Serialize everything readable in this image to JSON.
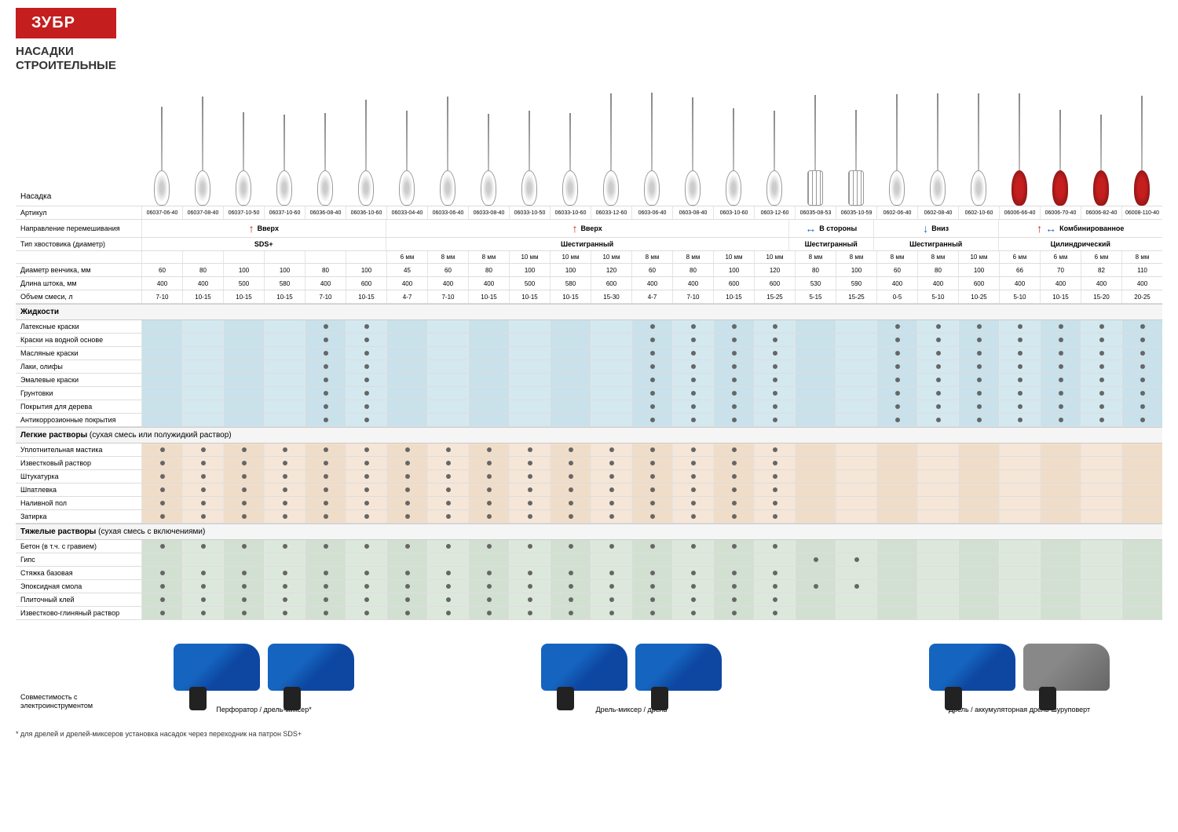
{
  "brand": "ЗУБР",
  "title1": "НАСАДКИ",
  "title2": "СТРОИТЕЛЬНЫЕ",
  "nasadka": "Насадка",
  "articles": [
    "06037-06-40",
    "06037-08-40",
    "06037-10-50",
    "06037-10-60",
    "06036-08-40",
    "06036-10-60",
    "06033-04-40",
    "06033-06-40",
    "06033-08-40",
    "06033-10-50",
    "06033-10-60",
    "06033-12-60",
    "0603-06-40",
    "0603-08-40",
    "0603-10-60",
    "0603-12-60",
    "06035-08-53",
    "06035-10-59",
    "0602-06-40",
    "0602-08-40",
    "0602-10-60",
    "06006-66-40",
    "06006-70-40",
    "06006-82-40",
    "06008-110-40"
  ],
  "rowLabels": {
    "art": "Артикул",
    "dir": "Направление перемешивания",
    "shank": "Тип хвостовика (диаметр)",
    "diam": "Диаметр венчика, мм",
    "len": "Длина штока, мм",
    "vol": "Объем смеси, л"
  },
  "dirs": {
    "up": "Вверх",
    "sides": "В стороны",
    "down": "Вниз",
    "combo": "Комбинированное"
  },
  "shank": {
    "sds": "SDS+",
    "hex": "Шестигранный",
    "cyl": "Цилиндрический"
  },
  "shankSizes": [
    "",
    "",
    "",
    "",
    "",
    "",
    "6 мм",
    "8 мм",
    "8 мм",
    "10 мм",
    "10 мм",
    "10 мм",
    "8 мм",
    "8 мм",
    "10 мм",
    "10 мм",
    "8 мм",
    "8 мм",
    "8 мм",
    "8 мм",
    "10 мм",
    "6 мм",
    "6 мм",
    "6 мм",
    "8 мм"
  ],
  "diams": [
    "60",
    "80",
    "100",
    "100",
    "80",
    "100",
    "45",
    "60",
    "80",
    "100",
    "100",
    "120",
    "60",
    "80",
    "100",
    "120",
    "80",
    "100",
    "60",
    "80",
    "100",
    "66",
    "70",
    "82",
    "110"
  ],
  "lens": [
    "400",
    "400",
    "500",
    "580",
    "400",
    "600",
    "400",
    "400",
    "400",
    "500",
    "580",
    "600",
    "400",
    "400",
    "600",
    "600",
    "530",
    "590",
    "400",
    "400",
    "600",
    "400",
    "400",
    "400",
    "400"
  ],
  "vols": [
    "7-10",
    "10-15",
    "10-15",
    "10-15",
    "7-10",
    "10-15",
    "4-7",
    "7-10",
    "10-15",
    "10-15",
    "10-15",
    "15-30",
    "4-7",
    "7-10",
    "10-15",
    "15-25",
    "5-15",
    "15-25",
    "0-5",
    "5-10",
    "10-25",
    "5-10",
    "10-15",
    "15-20",
    "20-25"
  ],
  "secLiquids": "Жидкости",
  "liquidRows": [
    "Латексные краски",
    "Краски на водной основе",
    "Масляные краски",
    "Лаки, олифы",
    "Эмалевые краски",
    "Грунтовки",
    "Покрытия для дерева",
    "Антикоррозионные покрытия"
  ],
  "liquidDots": [
    [
      0,
      0,
      0,
      0,
      1,
      1,
      0,
      0,
      0,
      0,
      0,
      0,
      1,
      1,
      1,
      1,
      0,
      0,
      1,
      1,
      1,
      1,
      1,
      1,
      1
    ],
    [
      0,
      0,
      0,
      0,
      1,
      1,
      0,
      0,
      0,
      0,
      0,
      0,
      1,
      1,
      1,
      1,
      0,
      0,
      1,
      1,
      1,
      1,
      1,
      1,
      1
    ],
    [
      0,
      0,
      0,
      0,
      1,
      1,
      0,
      0,
      0,
      0,
      0,
      0,
      1,
      1,
      1,
      1,
      0,
      0,
      1,
      1,
      1,
      1,
      1,
      1,
      1
    ],
    [
      0,
      0,
      0,
      0,
      1,
      1,
      0,
      0,
      0,
      0,
      0,
      0,
      1,
      1,
      1,
      1,
      0,
      0,
      1,
      1,
      1,
      1,
      1,
      1,
      1
    ],
    [
      0,
      0,
      0,
      0,
      1,
      1,
      0,
      0,
      0,
      0,
      0,
      0,
      1,
      1,
      1,
      1,
      0,
      0,
      1,
      1,
      1,
      1,
      1,
      1,
      1
    ],
    [
      0,
      0,
      0,
      0,
      1,
      1,
      0,
      0,
      0,
      0,
      0,
      0,
      1,
      1,
      1,
      1,
      0,
      0,
      1,
      1,
      1,
      1,
      1,
      1,
      1
    ],
    [
      0,
      0,
      0,
      0,
      1,
      1,
      0,
      0,
      0,
      0,
      0,
      0,
      1,
      1,
      1,
      1,
      0,
      0,
      1,
      1,
      1,
      1,
      1,
      1,
      1
    ],
    [
      0,
      0,
      0,
      0,
      1,
      1,
      0,
      0,
      0,
      0,
      0,
      0,
      1,
      1,
      1,
      1,
      0,
      0,
      1,
      1,
      1,
      1,
      1,
      1,
      1
    ]
  ],
  "secLights": "Легкие растворы",
  "secLightsSub": " (сухая смесь или полужидкий раствор)",
  "lightRows": [
    "Уплотнительная мастика",
    "Известковый раствор",
    "Штукатурка",
    "Шпатлевка",
    "Наливной пол",
    "Затирка"
  ],
  "lightDots": [
    [
      1,
      1,
      1,
      1,
      1,
      1,
      1,
      1,
      1,
      1,
      1,
      1,
      1,
      1,
      1,
      1,
      0,
      0,
      0,
      0,
      0,
      0,
      0,
      0,
      0
    ],
    [
      1,
      1,
      1,
      1,
      1,
      1,
      1,
      1,
      1,
      1,
      1,
      1,
      1,
      1,
      1,
      1,
      0,
      0,
      0,
      0,
      0,
      0,
      0,
      0,
      0
    ],
    [
      1,
      1,
      1,
      1,
      1,
      1,
      1,
      1,
      1,
      1,
      1,
      1,
      1,
      1,
      1,
      1,
      0,
      0,
      0,
      0,
      0,
      0,
      0,
      0,
      0
    ],
    [
      1,
      1,
      1,
      1,
      1,
      1,
      1,
      1,
      1,
      1,
      1,
      1,
      1,
      1,
      1,
      1,
      0,
      0,
      0,
      0,
      0,
      0,
      0,
      0,
      0
    ],
    [
      1,
      1,
      1,
      1,
      1,
      1,
      1,
      1,
      1,
      1,
      1,
      1,
      1,
      1,
      1,
      1,
      0,
      0,
      0,
      0,
      0,
      0,
      0,
      0,
      0
    ],
    [
      1,
      1,
      1,
      1,
      1,
      1,
      1,
      1,
      1,
      1,
      1,
      1,
      1,
      1,
      1,
      1,
      0,
      0,
      0,
      0,
      0,
      0,
      0,
      0,
      0
    ]
  ],
  "secHeavy": "Тяжелые растворы",
  "secHeavySub": " (сухая смесь с включениями)",
  "heavyRows": [
    "Бетон (в т.ч. с гравием)",
    "Гипс",
    "Стяжка базовая",
    "Эпоксидная смола",
    "Плиточный клей",
    "Известково-глиняный раствор"
  ],
  "heavyDots": [
    [
      1,
      1,
      1,
      1,
      1,
      1,
      1,
      1,
      1,
      1,
      1,
      1,
      1,
      1,
      1,
      1,
      0,
      0,
      0,
      0,
      0,
      0,
      0,
      0,
      0
    ],
    [
      0,
      0,
      0,
      0,
      0,
      0,
      0,
      0,
      0,
      0,
      0,
      0,
      0,
      0,
      0,
      0,
      1,
      1,
      0,
      0,
      0,
      0,
      0,
      0,
      0
    ],
    [
      1,
      1,
      1,
      1,
      1,
      1,
      1,
      1,
      1,
      1,
      1,
      1,
      1,
      1,
      1,
      1,
      0,
      0,
      0,
      0,
      0,
      0,
      0,
      0,
      0
    ],
    [
      1,
      1,
      1,
      1,
      1,
      1,
      1,
      1,
      1,
      1,
      1,
      1,
      1,
      1,
      1,
      1,
      1,
      1,
      0,
      0,
      0,
      0,
      0,
      0,
      0
    ],
    [
      1,
      1,
      1,
      1,
      1,
      1,
      1,
      1,
      1,
      1,
      1,
      1,
      1,
      1,
      1,
      1,
      0,
      0,
      0,
      0,
      0,
      0,
      0,
      0,
      0
    ],
    [
      1,
      1,
      1,
      1,
      1,
      1,
      1,
      1,
      1,
      1,
      1,
      1,
      1,
      1,
      1,
      1,
      0,
      0,
      0,
      0,
      0,
      0,
      0,
      0,
      0
    ]
  ],
  "compat": "Совместимость с электроинструментом",
  "tools": [
    "Перфоратор / дрель-миксер*",
    "Дрель-миксер / дрель",
    "Дрель / аккумуляторная дрель-шуруповерт"
  ],
  "footnote": "* для дрелей и дрелей-миксеров установка насадок через переходник на патрон SDS+"
}
